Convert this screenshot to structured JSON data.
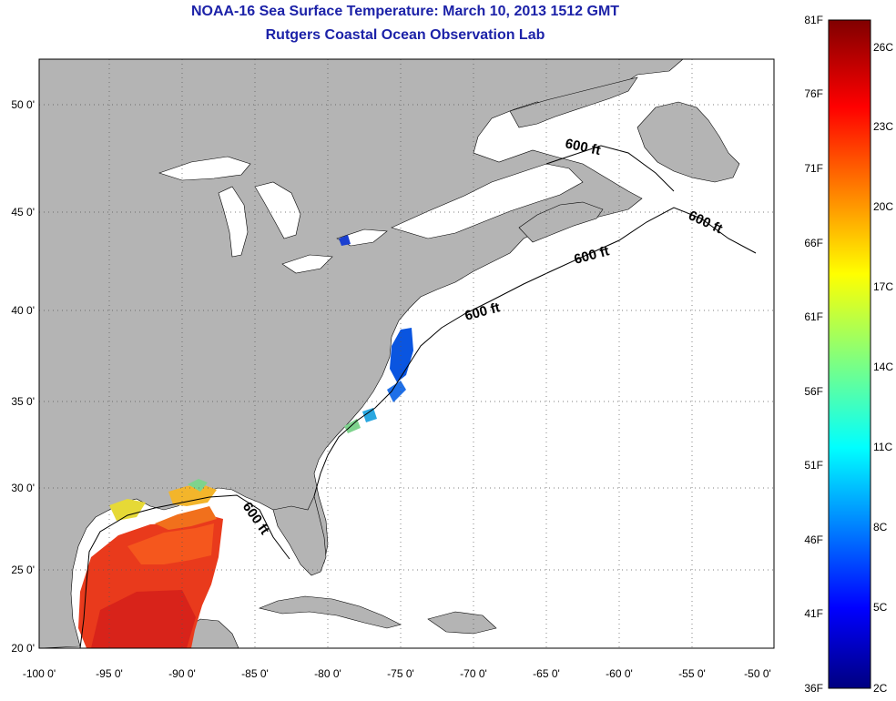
{
  "title": {
    "line1": "NOAA-16 Sea Surface Temperature:  March 10, 2013 1512 GMT",
    "line2": "Rutgers Coastal Ocean Observation Lab"
  },
  "map": {
    "lon_ticks": [
      "-100 0'",
      "-95 0'",
      "-90 0'",
      "-85 0'",
      "-80 0'",
      "-75 0'",
      "-70 0'",
      "-65 0'",
      "-60 0'",
      "-55 0'",
      "-50 0'"
    ],
    "lat_ticks": [
      "50 0'",
      "45 0'",
      "40 0'",
      "35 0'",
      "30 0'",
      "25 0'",
      "20 0'"
    ],
    "contour_labels": [
      "600 ft",
      "600 ft",
      "600 ft",
      "600 ft",
      "600 ft"
    ],
    "colors": {
      "land": "#b4b4b4",
      "ocean": "#ffffff",
      "grid": "#555555"
    }
  },
  "colorbar": {
    "fahrenheit": [
      "81F",
      "76F",
      "71F",
      "66F",
      "61F",
      "56F",
      "51F",
      "46F",
      "41F",
      "36F"
    ],
    "celsius": [
      "26C",
      "23C",
      "20C",
      "17C",
      "14C",
      "11C",
      "8C",
      "5C",
      "2C"
    ],
    "colormap": "jet"
  }
}
